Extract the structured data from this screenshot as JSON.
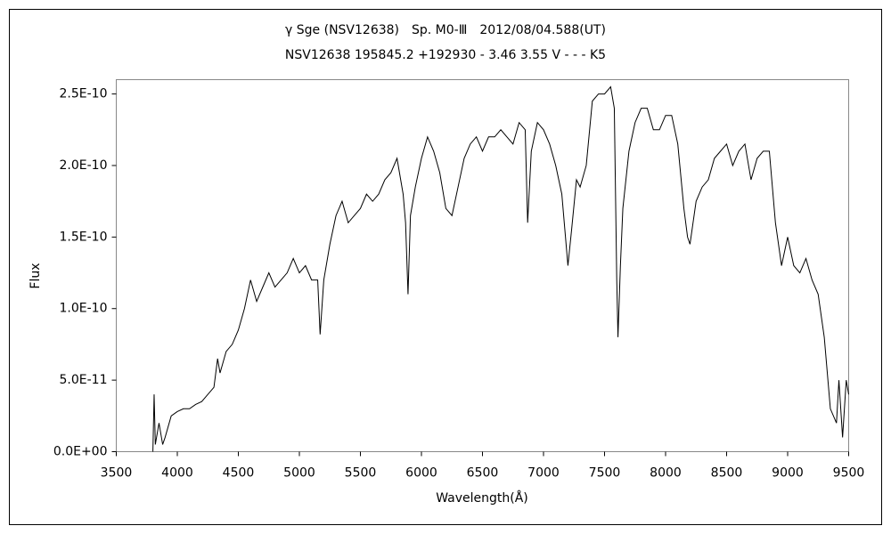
{
  "chart_data": {
    "type": "line",
    "title": "γ Sge (NSV12638)　Sp. M0-Ⅲ　2012/08/04.588(UT)",
    "subtitle": "NSV12638 195845.2 +192930 - 3.46 3.55 V - - - K5",
    "x_label": "Wavelength(Å)",
    "y_label": "Flux",
    "xlim": [
      3500,
      9500
    ],
    "xticks": [
      3500,
      4000,
      4500,
      5000,
      5500,
      6000,
      6500,
      7000,
      7500,
      8000,
      8500,
      9000,
      9500
    ],
    "ylim": [
      0,
      2.6e-10
    ],
    "yticks": [
      {
        "value": 0,
        "label": "0.0E+00"
      },
      {
        "value": 5e-11,
        "label": "5.0E-11"
      },
      {
        "value": 1e-10,
        "label": "1.0E-10"
      },
      {
        "value": 1.5e-10,
        "label": "1.5E-10"
      },
      {
        "value": 2e-10,
        "label": "2.0E-10"
      },
      {
        "value": 2.5e-10,
        "label": "2.5E-10"
      }
    ],
    "grid": false,
    "x": [
      3800,
      3810,
      3820,
      3850,
      3880,
      3900,
      3950,
      4000,
      4050,
      4100,
      4150,
      4200,
      4250,
      4300,
      4330,
      4350,
      4400,
      4450,
      4500,
      4550,
      4600,
      4650,
      4700,
      4750,
      4800,
      4850,
      4900,
      4950,
      5000,
      5050,
      5100,
      5150,
      5170,
      5200,
      5250,
      5300,
      5350,
      5400,
      5450,
      5500,
      5550,
      5600,
      5650,
      5700,
      5750,
      5800,
      5850,
      5870,
      5890,
      5910,
      5950,
      6000,
      6050,
      6100,
      6150,
      6200,
      6250,
      6300,
      6350,
      6400,
      6450,
      6500,
      6550,
      6600,
      6650,
      6700,
      6750,
      6800,
      6850,
      6870,
      6900,
      6950,
      7000,
      7050,
      7100,
      7150,
      7180,
      7200,
      7230,
      7270,
      7300,
      7350,
      7400,
      7450,
      7500,
      7550,
      7580,
      7600,
      7610,
      7630,
      7650,
      7700,
      7750,
      7800,
      7850,
      7900,
      7950,
      8000,
      8050,
      8100,
      8150,
      8180,
      8200,
      8250,
      8300,
      8350,
      8400,
      8450,
      8500,
      8550,
      8600,
      8650,
      8700,
      8750,
      8800,
      8850,
      8900,
      8950,
      9000,
      9050,
      9100,
      9150,
      9200,
      9250,
      9300,
      9350,
      9400,
      9420,
      9450,
      9480,
      9500
    ],
    "series": [
      {
        "color": "#000000",
        "values": [
          0,
          4e-11,
          5e-12,
          2e-11,
          5e-12,
          1e-11,
          2.5e-11,
          2.8e-11,
          3e-11,
          3e-11,
          3.3e-11,
          3.5e-11,
          4e-11,
          4.5e-11,
          6.5e-11,
          5.5e-11,
          7e-11,
          7.5e-11,
          8.5e-11,
          1e-10,
          1.2e-10,
          1.05e-10,
          1.15e-10,
          1.25e-10,
          1.15e-10,
          1.2e-10,
          1.25e-10,
          1.35e-10,
          1.25e-10,
          1.3e-10,
          1.2e-10,
          1.2e-10,
          8.2e-11,
          1.2e-10,
          1.45e-10,
          1.65e-10,
          1.75e-10,
          1.6e-10,
          1.65e-10,
          1.7e-10,
          1.8e-10,
          1.75e-10,
          1.8e-10,
          1.9e-10,
          1.95e-10,
          2.05e-10,
          1.8e-10,
          1.6e-10,
          1.1e-10,
          1.65e-10,
          1.85e-10,
          2.05e-10,
          2.2e-10,
          2.1e-10,
          1.95e-10,
          1.7e-10,
          1.65e-10,
          1.85e-10,
          2.05e-10,
          2.15e-10,
          2.2e-10,
          2.1e-10,
          2.2e-10,
          2.2e-10,
          2.25e-10,
          2.2e-10,
          2.15e-10,
          2.3e-10,
          2.25e-10,
          1.6e-10,
          2.1e-10,
          2.3e-10,
          2.25e-10,
          2.15e-10,
          2e-10,
          1.8e-10,
          1.5e-10,
          1.3e-10,
          1.55e-10,
          1.9e-10,
          1.85e-10,
          2e-10,
          2.45e-10,
          2.5e-10,
          2.5e-10,
          2.55e-10,
          2.4e-10,
          1.2e-10,
          8e-11,
          1.3e-10,
          1.7e-10,
          2.1e-10,
          2.3e-10,
          2.4e-10,
          2.4e-10,
          2.25e-10,
          2.25e-10,
          2.35e-10,
          2.35e-10,
          2.15e-10,
          1.7e-10,
          1.5e-10,
          1.45e-10,
          1.75e-10,
          1.85e-10,
          1.9e-10,
          2.05e-10,
          2.1e-10,
          2.15e-10,
          2e-10,
          2.1e-10,
          2.15e-10,
          1.9e-10,
          2.05e-10,
          2.1e-10,
          2.1e-10,
          1.6e-10,
          1.3e-10,
          1.5e-10,
          1.3e-10,
          1.25e-10,
          1.35e-10,
          1.2e-10,
          1.1e-10,
          8e-11,
          3e-11,
          2e-11,
          5e-11,
          1e-11,
          5e-11,
          4e-11
        ]
      }
    ]
  }
}
